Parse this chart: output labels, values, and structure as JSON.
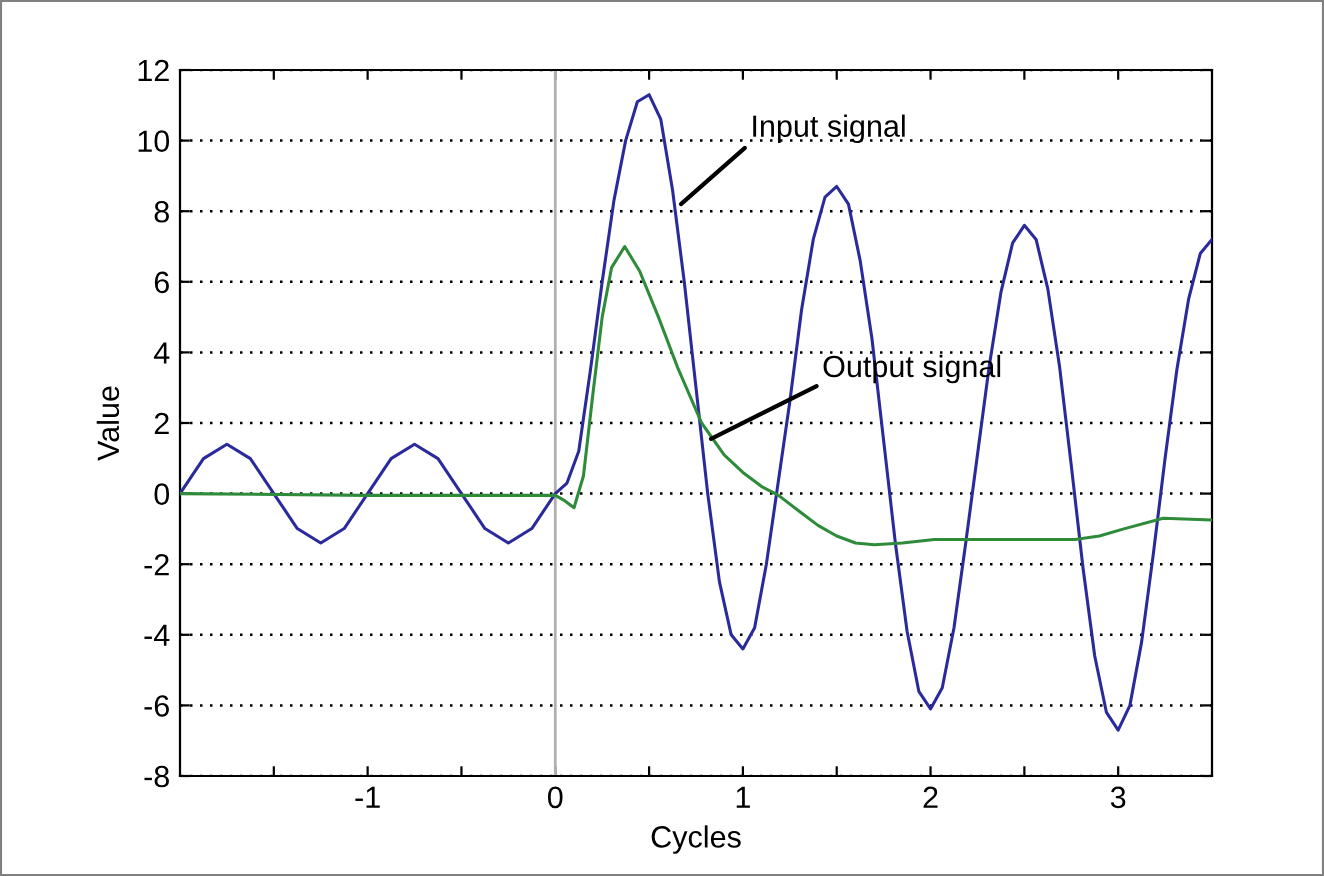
{
  "chart_data": {
    "type": "line",
    "xlabel": "Cycles",
    "ylabel": "Value",
    "xlim": [
      -2,
      3.5
    ],
    "ylim": [
      -8,
      12
    ],
    "xticks": [
      {
        "value": -1.5,
        "label": null
      },
      -1,
      {
        "value": -0.5,
        "label": null
      },
      0,
      {
        "value": 0.5,
        "label": null
      },
      1,
      {
        "value": 1.5,
        "label": null
      },
      2,
      {
        "value": 2.5,
        "label": null
      },
      3
    ],
    "yticks": [
      -8,
      -6,
      -4,
      -2,
      0,
      2,
      4,
      6,
      8,
      10,
      12
    ],
    "grid": "y",
    "line_style": "solid",
    "marker": "none",
    "ref_lines": [
      {
        "axis": "x",
        "value": 0,
        "color": "#b0b0b0"
      }
    ],
    "annotations": [
      {
        "text": "Input signal",
        "x": 0.67,
        "y": 8.2
      },
      {
        "text": "Output signal",
        "x": 0.83,
        "y": 1.55
      }
    ],
    "series": [
      {
        "color": "#2a2a9c",
        "x": [
          -2,
          -1.875,
          -1.75,
          -1.625,
          -1.5,
          -1.375,
          -1.25,
          -1.125,
          -1,
          -0.875,
          -0.75,
          -0.625,
          -0.5,
          -0.375,
          -0.25,
          -0.125,
          0,
          0.0625,
          0.125,
          0.1875,
          0.25,
          0.3125,
          0.375,
          0.4375,
          0.5,
          0.5625,
          0.625,
          0.6875,
          0.75,
          0.8125,
          0.875,
          0.9375,
          1.0,
          1.0625,
          1.125,
          1.1875,
          1.25,
          1.3125,
          1.375,
          1.4375,
          1.5,
          1.5625,
          1.625,
          1.6875,
          1.75,
          1.8125,
          1.875,
          1.9375,
          2.0,
          2.0625,
          2.125,
          2.1875,
          2.25,
          2.3125,
          2.375,
          2.4375,
          2.5,
          2.5625,
          2.625,
          2.6875,
          2.75,
          2.8125,
          2.875,
          2.9375,
          3.0,
          3.0625,
          3.125,
          3.1875,
          3.25,
          3.3125,
          3.375,
          3.4375,
          3.5
        ],
        "values": [
          0,
          0.99,
          1.4,
          0.99,
          0,
          -0.99,
          -1.4,
          -0.99,
          0,
          0.99,
          1.4,
          0.99,
          0,
          -0.99,
          -1.4,
          -0.99,
          0,
          0.3,
          1.2,
          3.5,
          6.0,
          8.3,
          10.0,
          11.1,
          11.3,
          10.6,
          8.6,
          6.0,
          3.0,
          0.0,
          -2.5,
          -4.0,
          -4.4,
          -3.8,
          -2.0,
          0.3,
          2.6,
          5.2,
          7.2,
          8.4,
          8.7,
          8.2,
          6.6,
          4.4,
          1.5,
          -1.4,
          -3.9,
          -5.6,
          -6.1,
          -5.5,
          -3.8,
          -1.4,
          1.1,
          3.6,
          5.7,
          7.1,
          7.6,
          7.2,
          5.8,
          3.6,
          0.8,
          -2.1,
          -4.6,
          -6.2,
          -6.7,
          -6.0,
          -4.2,
          -1.7,
          1.0,
          3.5,
          5.5,
          6.8,
          7.2
        ]
      },
      {
        "color": "#2e8b3a",
        "x": [
          -2,
          -1,
          0,
          0.05,
          0.1,
          0.15,
          0.2,
          0.25,
          0.3,
          0.37,
          0.45,
          0.55,
          0.65,
          0.78,
          0.9,
          1.0,
          1.1,
          1.19,
          1.3,
          1.4,
          1.5,
          1.6,
          1.7,
          1.85,
          2.02,
          2.38,
          2.77,
          2.9,
          3.03,
          3.24,
          3.5
        ],
        "values": [
          0,
          -0.05,
          -0.05,
          -0.2,
          -0.4,
          0.5,
          2.8,
          5.0,
          6.4,
          7.0,
          6.3,
          5.0,
          3.6,
          2.0,
          1.1,
          0.6,
          0.2,
          -0.05,
          -0.5,
          -0.9,
          -1.2,
          -1.4,
          -1.45,
          -1.4,
          -1.3,
          -1.3,
          -1.3,
          -1.2,
          -1.0,
          -0.7,
          -0.75
        ]
      }
    ]
  }
}
